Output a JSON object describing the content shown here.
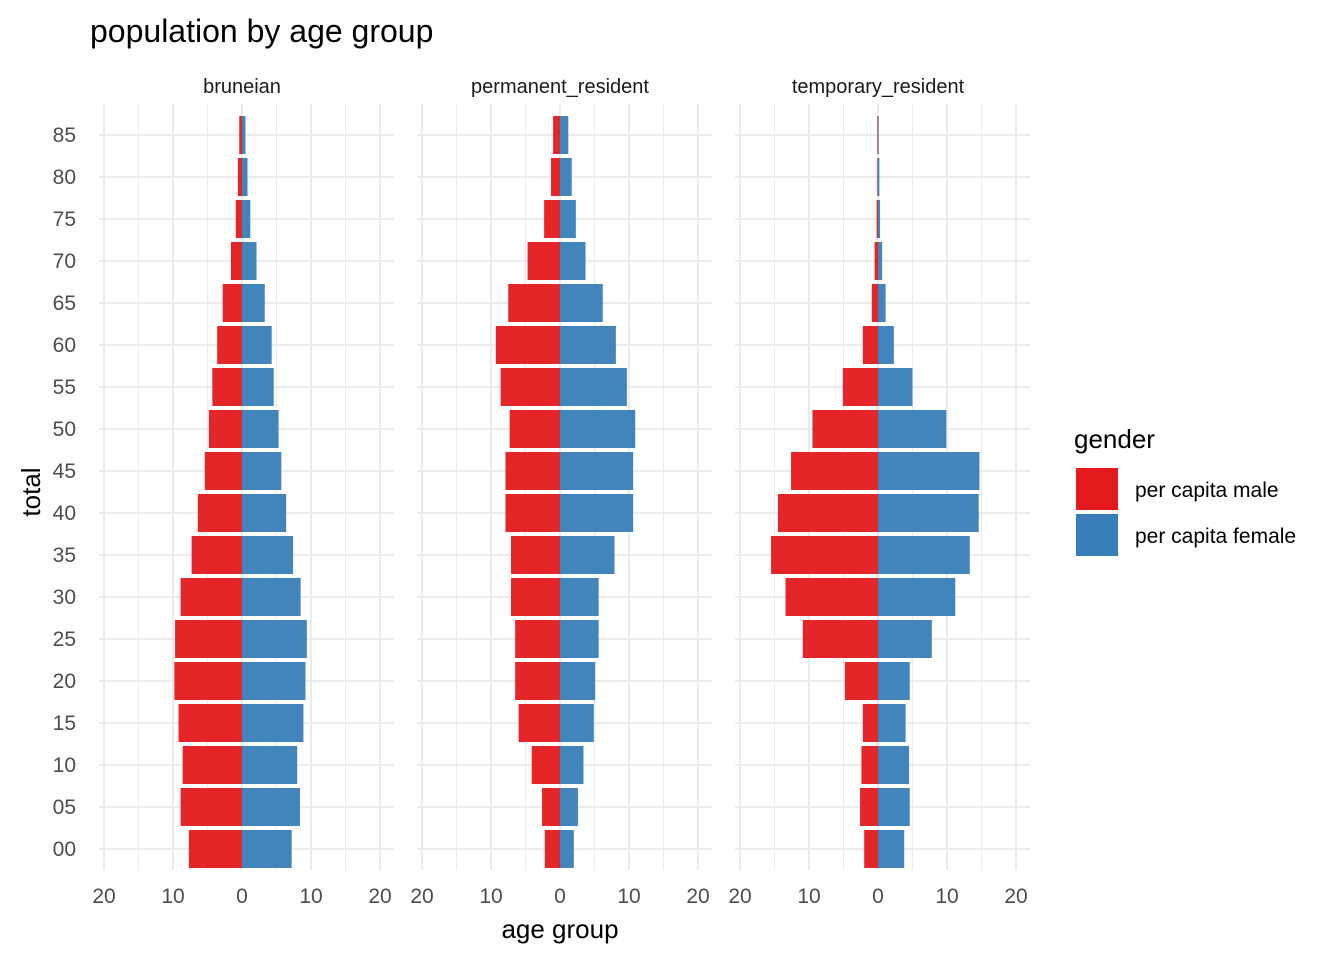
{
  "chart_data": {
    "type": "bar",
    "orientation": "horizontal",
    "title": "population by age group",
    "xlabel": "age group",
    "ylabel": "total",
    "legend": {
      "title": "gender",
      "position": "right",
      "items": [
        {
          "label": "per capita male",
          "color": "#E41A1C"
        },
        {
          "label": "per capita female",
          "color": "#377EB8"
        }
      ]
    },
    "grid": true,
    "xlim": [
      -20,
      20
    ],
    "x_ticks": [
      -20,
      -10,
      0,
      10,
      20
    ],
    "x_tick_labels": [
      "20",
      "10",
      "0",
      "10",
      "20"
    ],
    "categories": [
      "00",
      "05",
      "10",
      "15",
      "20",
      "25",
      "30",
      "35",
      "40",
      "45",
      "50",
      "55",
      "60",
      "65",
      "70",
      "75",
      "80",
      "85"
    ],
    "panels": [
      {
        "name": "bruneian",
        "male": [
          7.7,
          8.9,
          8.6,
          9.2,
          9.8,
          9.7,
          8.9,
          7.3,
          6.4,
          5.4,
          4.8,
          4.3,
          3.6,
          2.8,
          1.6,
          0.9,
          0.6,
          0.4
        ],
        "female": [
          7.2,
          8.4,
          8.0,
          8.9,
          9.2,
          9.4,
          8.5,
          7.4,
          6.4,
          5.7,
          5.3,
          4.6,
          4.3,
          3.3,
          2.1,
          1.2,
          0.8,
          0.5
        ]
      },
      {
        "name": "permanent_resident",
        "male": [
          2.2,
          2.6,
          4.1,
          6.0,
          6.5,
          6.5,
          7.1,
          7.1,
          7.9,
          7.9,
          7.3,
          8.6,
          9.3,
          7.5,
          4.7,
          2.3,
          1.3,
          1.0
        ],
        "female": [
          2.0,
          2.6,
          3.4,
          4.9,
          5.1,
          5.6,
          5.6,
          7.9,
          10.6,
          10.6,
          10.9,
          9.7,
          8.1,
          6.2,
          3.7,
          2.3,
          1.7,
          1.2
        ]
      },
      {
        "name": "temporary_resident",
        "male": [
          2.0,
          2.6,
          2.4,
          2.2,
          4.8,
          10.9,
          13.4,
          15.5,
          14.5,
          12.6,
          9.5,
          5.1,
          2.2,
          0.9,
          0.5,
          0.2,
          0.1,
          0.1
        ],
        "female": [
          3.8,
          4.6,
          4.5,
          4.0,
          4.6,
          7.8,
          11.2,
          13.3,
          14.6,
          14.7,
          9.9,
          5.0,
          2.3,
          1.1,
          0.6,
          0.3,
          0.2,
          0.1
        ]
      }
    ]
  }
}
